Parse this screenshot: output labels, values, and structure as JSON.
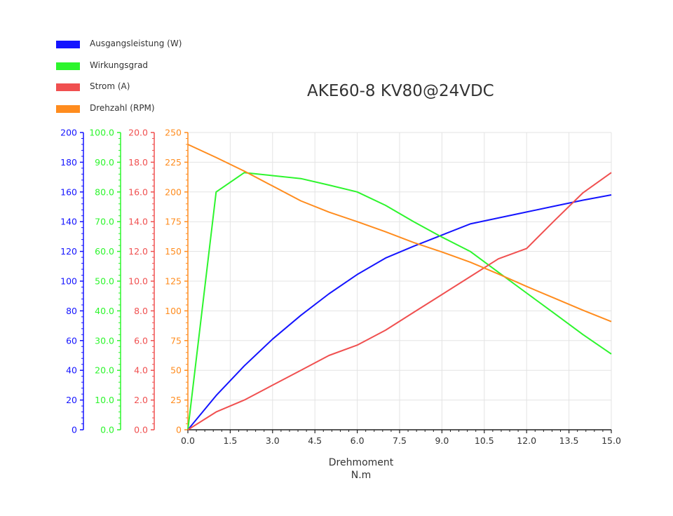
{
  "chart_data": {
    "type": "line",
    "title": "AKE60-8 KV80@24VDC",
    "xlabel": "Drehmoment",
    "xunit": "N.m",
    "x_ticks": [
      "0.0",
      "1.5",
      "3.0",
      "4.5",
      "6.0",
      "7.5",
      "9.0",
      "10.5",
      "12.0",
      "13.5",
      "15.0"
    ],
    "xlim": [
      0,
      15
    ],
    "grid": true,
    "legend_position": "top-left",
    "axes": [
      {
        "id": "power",
        "color": "#1414ff",
        "ylim": [
          0,
          200
        ],
        "ticks": [
          "0",
          "20",
          "40",
          "60",
          "80",
          "100",
          "120",
          "140",
          "160",
          "180",
          "200"
        ]
      },
      {
        "id": "efficiency",
        "color": "#2df52d",
        "ylim": [
          0,
          100
        ],
        "ticks": [
          "0.0",
          "10.0",
          "20.0",
          "30.0",
          "40.0",
          "50.0",
          "60.0",
          "70.0",
          "80.0",
          "90.0",
          "100.0"
        ]
      },
      {
        "id": "current",
        "color": "#f05050",
        "ylim": [
          0,
          20
        ],
        "ticks": [
          "0.0",
          "2.0",
          "4.0",
          "6.0",
          "8.0",
          "10.0",
          "12.0",
          "14.0",
          "16.0",
          "18.0",
          "20.0"
        ]
      },
      {
        "id": "speed",
        "color": "#ff8c1e",
        "ylim": [
          0,
          250
        ],
        "ticks": [
          "0",
          "25",
          "50",
          "75",
          "100",
          "125",
          "150",
          "175",
          "200",
          "225",
          "250"
        ]
      }
    ],
    "series": [
      {
        "name": "Ausgangsleistung (W)",
        "axis": "power",
        "color": "#1414ff",
        "x": [
          0,
          1,
          2,
          3,
          4,
          5,
          6,
          7,
          8,
          9,
          10,
          11,
          12,
          13,
          14,
          15
        ],
        "y": [
          0,
          23,
          43,
          61,
          77,
          91.5,
          104.5,
          115.5,
          123.5,
          131,
          138.5,
          142.5,
          146.5,
          150.5,
          154.5,
          158
        ]
      },
      {
        "name": "Wirkungsgrad",
        "axis": "efficiency",
        "color": "#2df52d",
        "x": [
          0,
          1,
          2,
          3,
          4,
          5,
          6,
          7,
          8,
          9,
          10,
          11,
          12,
          13,
          14,
          15
        ],
        "y": [
          0,
          80,
          86.5,
          85.5,
          84.5,
          82.3,
          80,
          75.5,
          70,
          64.8,
          60,
          53,
          46,
          39,
          32,
          25.5
        ]
      },
      {
        "name": "Strom (A)",
        "axis": "current",
        "color": "#f05050",
        "x": [
          0,
          1,
          2,
          3,
          4,
          5,
          6,
          7,
          8,
          9,
          10,
          11,
          12,
          13,
          14,
          15
        ],
        "y": [
          0,
          1.2,
          2.0,
          3.0,
          4.0,
          5.0,
          5.7,
          6.7,
          7.9,
          9.1,
          10.3,
          11.5,
          12.2,
          14.1,
          15.95,
          17.3
        ]
      },
      {
        "name": "Drehzahl (RPM)",
        "axis": "speed",
        "color": "#ff8c1e",
        "x": [
          0,
          1,
          2,
          3,
          4,
          5,
          6,
          7,
          8,
          9,
          10,
          11,
          12,
          13,
          14,
          15
        ],
        "y": [
          240,
          229,
          217.5,
          205,
          192.5,
          183,
          175,
          166.5,
          157.5,
          149.5,
          141,
          131,
          120.5,
          110.5,
          100.5,
          91
        ]
      }
    ]
  }
}
